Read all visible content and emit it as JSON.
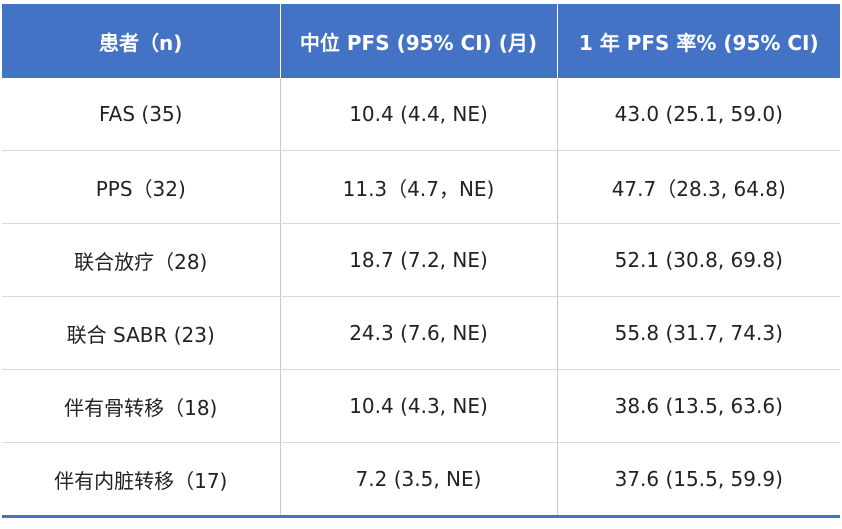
{
  "table": {
    "headers": [
      "患者（n)",
      "中位 PFS (95% CI) (月)",
      "1 年 PFS 率% (95% CI)"
    ],
    "rows": [
      [
        "FAS (35)",
        "10.4 (4.4, NE)",
        "43.0 (25.1, 59.0)"
      ],
      [
        "PPS（32)",
        "11.3（4.7，NE)",
        "47.7（28.3, 64.8)"
      ],
      [
        "联合放疗（28)",
        "18.7 (7.2, NE)",
        "52.1 (30.8, 69.8)"
      ],
      [
        "联合 SABR (23)",
        "24.3 (7.6, NE)",
        "55.8 (31.7, 74.3)"
      ],
      [
        "伴有骨转移（18)",
        "10.4 (4.3, NE)",
        "38.6 (13.5, 63.6)"
      ],
      [
        "伴有内脏转移（17)",
        "7.2 (3.5, NE)",
        "37.6 (15.5, 59.9)"
      ]
    ]
  },
  "colors": {
    "header_bg": "#4472c4",
    "header_text": "#ffffff",
    "body_text": "#222222"
  }
}
